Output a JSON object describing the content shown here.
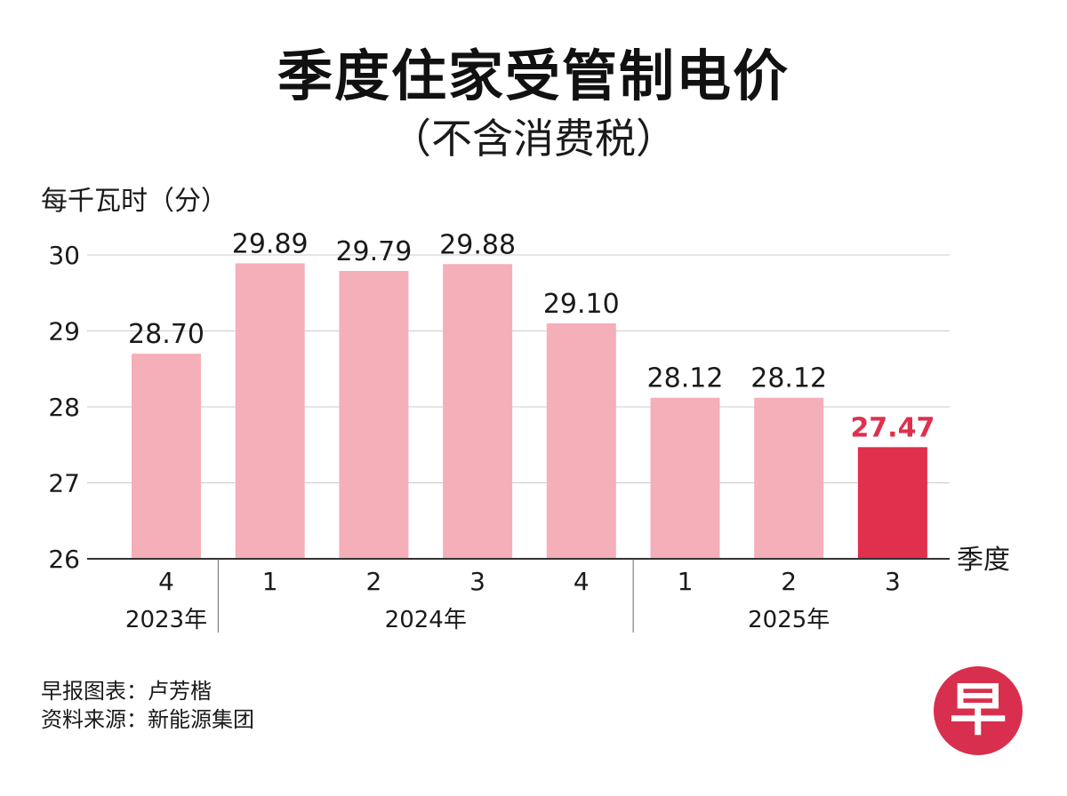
{
  "header": {
    "title": "季度住家受管制电价",
    "subtitle": "（不含消费税）"
  },
  "chart_data": {
    "type": "bar",
    "title": "季度住家受管制电价",
    "subtitle": "（不含消费税）",
    "ylabel": "每千瓦时（分）",
    "xlabel": "季度",
    "ylim": [
      26,
      30
    ],
    "yticks": [
      "26",
      "27",
      "28",
      "29",
      "30"
    ],
    "grid": true,
    "categories": [
      "4",
      "1",
      "2",
      "3",
      "4",
      "1",
      "2",
      "3"
    ],
    "values": [
      28.7,
      29.89,
      29.79,
      29.88,
      29.1,
      28.12,
      28.12,
      27.47
    ],
    "value_labels": [
      "28.70",
      "29.89",
      "29.79",
      "29.88",
      "29.10",
      "28.12",
      "28.12",
      "27.47"
    ],
    "highlight_index": 7,
    "bar_color": "#f5afb9",
    "highlight_color": "#e0304e",
    "year_groups": [
      {
        "label": "2023年",
        "start": 0,
        "end": 0
      },
      {
        "label": "2024年",
        "start": 1,
        "end": 4
      },
      {
        "label": "2025年",
        "start": 5,
        "end": 7
      }
    ]
  },
  "footer": {
    "credit_line": "早报图表：卢芳楷",
    "source_line": "资料来源：新能源集团",
    "logo_char": "早"
  }
}
